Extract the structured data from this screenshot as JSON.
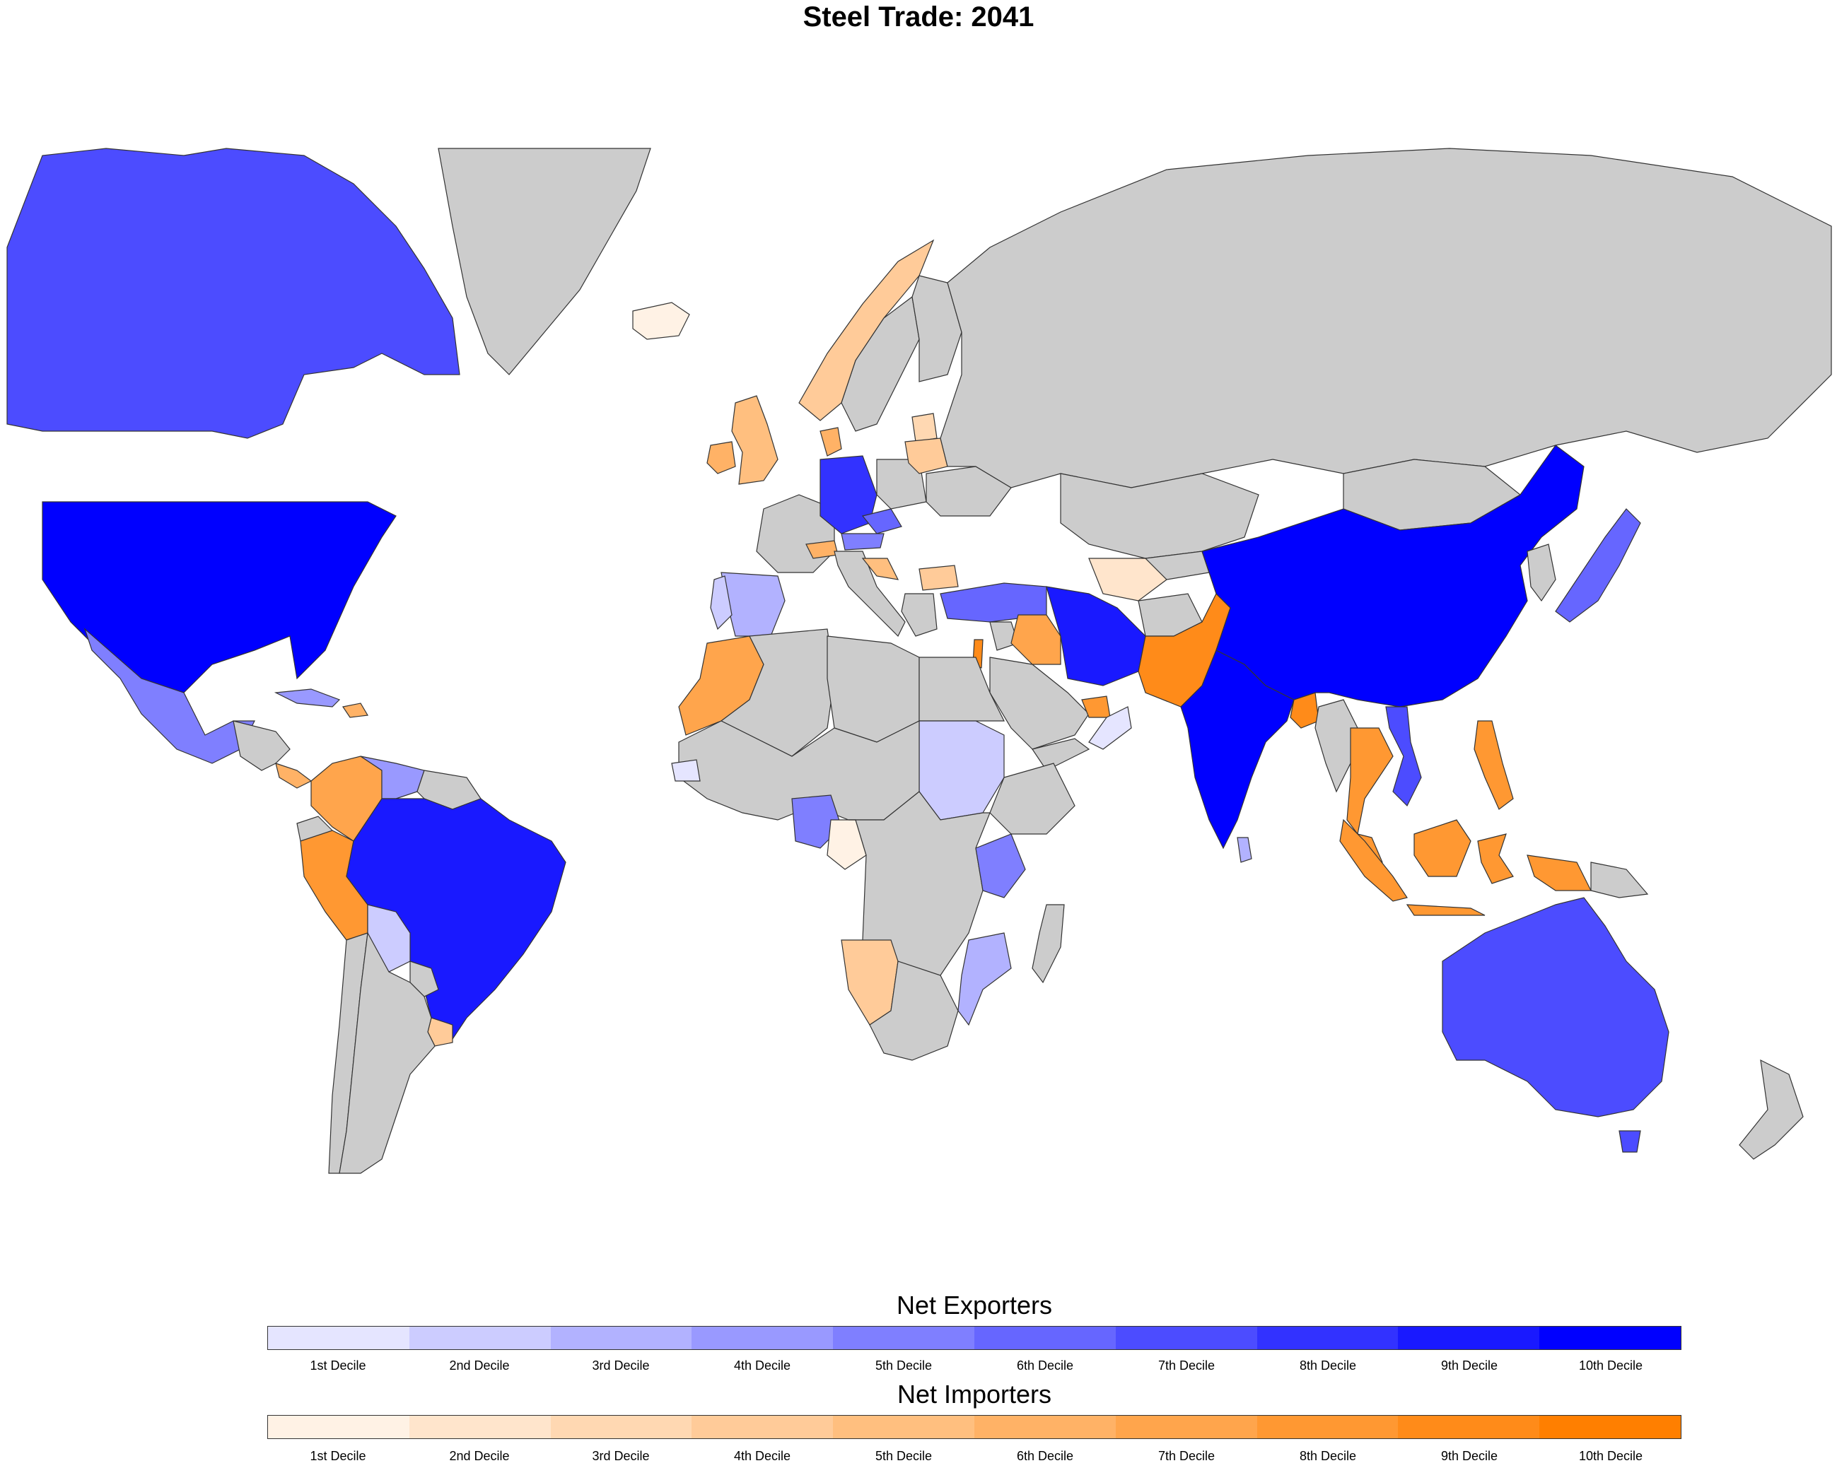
{
  "title": "Steel Trade: 2041",
  "colors": {
    "no_data": "#cccccc",
    "border": "#333333",
    "exporters": [
      "#e5e5ff",
      "#ccccff",
      "#b2b2ff",
      "#9999ff",
      "#7f7fff",
      "#6666ff",
      "#4c4cff",
      "#3232ff",
      "#1919ff",
      "#0000ff"
    ],
    "importers": [
      "#fff2e5",
      "#ffe5cc",
      "#ffd8b2",
      "#ffcb99",
      "#ffbf7f",
      "#ffb266",
      "#ffa54c",
      "#ff9832",
      "#ff8b19",
      "#ff7f00"
    ]
  },
  "legend": {
    "exporters": {
      "title": "Net Exporters",
      "labels": [
        "1st Decile",
        "2nd Decile",
        "3rd Decile",
        "4th Decile",
        "5th Decile",
        "6th Decile",
        "7th Decile",
        "8th Decile",
        "9th Decile",
        "10th Decile"
      ]
    },
    "importers": {
      "title": "Net Importers",
      "labels": [
        "1st Decile",
        "2nd Decile",
        "3rd Decile",
        "4th Decile",
        "5th Decile",
        "6th Decile",
        "7th Decile",
        "8th Decile",
        "9th Decile",
        "10th Decile"
      ]
    }
  },
  "regions": [
    {
      "name": "Canada",
      "group": "exporters",
      "decile": 7
    },
    {
      "name": "United States",
      "group": "exporters",
      "decile": 10
    },
    {
      "name": "Mexico",
      "group": "exporters",
      "decile": 5
    },
    {
      "name": "Greenland",
      "group": "none",
      "decile": 0
    },
    {
      "name": "Iceland",
      "group": "importers",
      "decile": 1
    },
    {
      "name": "Cuba",
      "group": "exporters",
      "decile": 4
    },
    {
      "name": "Dominican Republic",
      "group": "importers",
      "decile": 6
    },
    {
      "name": "Central America",
      "group": "none",
      "decile": 0
    },
    {
      "name": "Costa Rica",
      "group": "importers",
      "decile": 6
    },
    {
      "name": "Colombia",
      "group": "importers",
      "decile": 7
    },
    {
      "name": "Venezuela",
      "group": "exporters",
      "decile": 4
    },
    {
      "name": "Guianas",
      "group": "none",
      "decile": 0
    },
    {
      "name": "Ecuador",
      "group": "none",
      "decile": 0
    },
    {
      "name": "Peru",
      "group": "importers",
      "decile": 8
    },
    {
      "name": "Brazil",
      "group": "exporters",
      "decile": 9
    },
    {
      "name": "Bolivia",
      "group": "exporters",
      "decile": 2
    },
    {
      "name": "Paraguay",
      "group": "none",
      "decile": 0
    },
    {
      "name": "Uruguay",
      "group": "importers",
      "decile": 4
    },
    {
      "name": "Chile",
      "group": "none",
      "decile": 0
    },
    {
      "name": "Argentina",
      "group": "none",
      "decile": 0
    },
    {
      "name": "United Kingdom",
      "group": "importers",
      "decile": 5
    },
    {
      "name": "Ireland",
      "group": "importers",
      "decile": 6
    },
    {
      "name": "Norway",
      "group": "importers",
      "decile": 4
    },
    {
      "name": "Sweden",
      "group": "none",
      "decile": 0
    },
    {
      "name": "Finland",
      "group": "none",
      "decile": 0
    },
    {
      "name": "Denmark",
      "group": "importers",
      "decile": 6
    },
    {
      "name": "Germany",
      "group": "exporters",
      "decile": 8
    },
    {
      "name": "Czechia",
      "group": "exporters",
      "decile": 6
    },
    {
      "name": "Austria",
      "group": "exporters",
      "decile": 5
    },
    {
      "name": "France",
      "group": "none",
      "decile": 0
    },
    {
      "name": "Spain",
      "group": "exporters",
      "decile": 3
    },
    {
      "name": "Portugal",
      "group": "exporters",
      "decile": 2
    },
    {
      "name": "Switzerland",
      "group": "importers",
      "decile": 6
    },
    {
      "name": "Italy",
      "group": "none",
      "decile": 0
    },
    {
      "name": "Poland",
      "group": "none",
      "decile": 0
    },
    {
      "name": "Lithuania",
      "group": "importers",
      "decile": 3
    },
    {
      "name": "Belarus",
      "group": "importers",
      "decile": 4
    },
    {
      "name": "Ukraine",
      "group": "none",
      "decile": 0
    },
    {
      "name": "Croatia",
      "group": "importers",
      "decile": 5
    },
    {
      "name": "Bulgaria",
      "group": "importers",
      "decile": 4
    },
    {
      "name": "Greece",
      "group": "none",
      "decile": 0
    },
    {
      "name": "Turkey",
      "group": "exporters",
      "decile": 6
    },
    {
      "name": "Russia",
      "group": "none",
      "decile": 0
    },
    {
      "name": "Kazakhstan",
      "group": "none",
      "decile": 0
    },
    {
      "name": "Turkmenistan",
      "group": "importers",
      "decile": 2
    },
    {
      "name": "Uzbekistan",
      "group": "none",
      "decile": 0
    },
    {
      "name": "Iran",
      "group": "exporters",
      "decile": 9
    },
    {
      "name": "Iraq",
      "group": "importers",
      "decile": 7
    },
    {
      "name": "Syria",
      "group": "none",
      "decile": 0
    },
    {
      "name": "Israel",
      "group": "importers",
      "decile": 9
    },
    {
      "name": "Saudi Arabia",
      "group": "none",
      "decile": 0
    },
    {
      "name": "United Arab Emirates",
      "group": "importers",
      "decile": 8
    },
    {
      "name": "Oman",
      "group": "exporters",
      "decile": 1
    },
    {
      "name": "Yemen",
      "group": "none",
      "decile": 0
    },
    {
      "name": "Afghanistan",
      "group": "none",
      "decile": 0
    },
    {
      "name": "Pakistan",
      "group": "importers",
      "decile": 9
    },
    {
      "name": "India",
      "group": "exporters",
      "decile": 10
    },
    {
      "name": "Sri Lanka",
      "group": "exporters",
      "decile": 3
    },
    {
      "name": "Nepal",
      "group": "none",
      "decile": 0
    },
    {
      "name": "Bangladesh",
      "group": "importers",
      "decile": 9
    },
    {
      "name": "China",
      "group": "exporters",
      "decile": 10
    },
    {
      "name": "Mongolia",
      "group": "none",
      "decile": 0
    },
    {
      "name": "Korea",
      "group": "none",
      "decile": 0
    },
    {
      "name": "Japan",
      "group": "exporters",
      "decile": 6
    },
    {
      "name": "Myanmar",
      "group": "none",
      "decile": 0
    },
    {
      "name": "Thailand",
      "group": "importers",
      "decile": 8
    },
    {
      "name": "Vietnam",
      "group": "exporters",
      "decile": 7
    },
    {
      "name": "Malaysia",
      "group": "importers",
      "decile": 8
    },
    {
      "name": "Philippines",
      "group": "importers",
      "decile": 8
    },
    {
      "name": "Sumatra",
      "group": "importers",
      "decile": 8
    },
    {
      "name": "Borneo",
      "group": "importers",
      "decile": 8
    },
    {
      "name": "Java",
      "group": "importers",
      "decile": 8
    },
    {
      "name": "Sulawesi",
      "group": "importers",
      "decile": 8
    },
    {
      "name": "Papua",
      "group": "importers",
      "decile": 8
    },
    {
      "name": "Papua New Guinea",
      "group": "none",
      "decile": 0
    },
    {
      "name": "Australia",
      "group": "exporters",
      "decile": 7
    },
    {
      "name": "Tasmania",
      "group": "exporters",
      "decile": 7
    },
    {
      "name": "New Zealand",
      "group": "none",
      "decile": 0
    },
    {
      "name": "Morocco",
      "group": "importers",
      "decile": 7
    },
    {
      "name": "Algeria",
      "group": "none",
      "decile": 0
    },
    {
      "name": "Libya",
      "group": "none",
      "decile": 0
    },
    {
      "name": "Egypt",
      "group": "none",
      "decile": 0
    },
    {
      "name": "Sudan",
      "group": "exporters",
      "decile": 2
    },
    {
      "name": "Senegal",
      "group": "exporters",
      "decile": 1
    },
    {
      "name": "Nigeria",
      "group": "exporters",
      "decile": 5
    },
    {
      "name": "Cameroon",
      "group": "importers",
      "decile": 1
    },
    {
      "name": "Ethiopia",
      "group": "none",
      "decile": 0
    },
    {
      "name": "Kenya",
      "group": "exporters",
      "decile": 5
    },
    {
      "name": "DR Congo",
      "group": "none",
      "decile": 0
    },
    {
      "name": "Namibia",
      "group": "importers",
      "decile": 4
    },
    {
      "name": "Mozambique",
      "group": "exporters",
      "decile": 3
    },
    {
      "name": "South Africa",
      "group": "none",
      "decile": 0
    },
    {
      "name": "Madagascar",
      "group": "none",
      "decile": 0
    }
  ]
}
